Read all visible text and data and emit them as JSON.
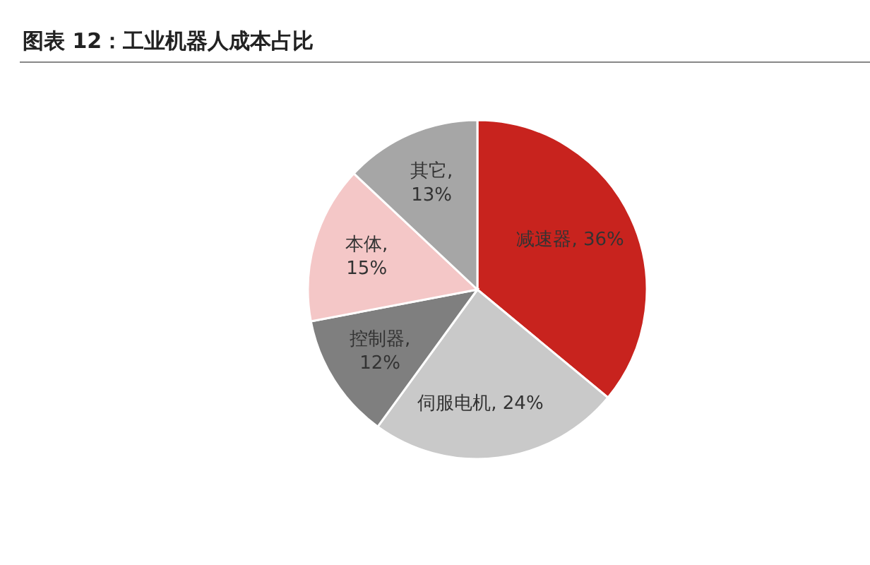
{
  "chart_data": {
    "type": "pie",
    "title": "图表 12：工业机器人成本占比",
    "categories": [
      "减速器",
      "伺服电机",
      "控制器",
      "本体",
      "其它"
    ],
    "value_labels": [
      ", 36%",
      ", 24%",
      ", 12%",
      ", 15%",
      ", 13%"
    ],
    "values": [
      36,
      24,
      12,
      15,
      13
    ],
    "colors": [
      "#c8231e",
      "#c9c9c9",
      "#7f7f7f",
      "#f4c7c7",
      "#a6a6a6"
    ]
  }
}
